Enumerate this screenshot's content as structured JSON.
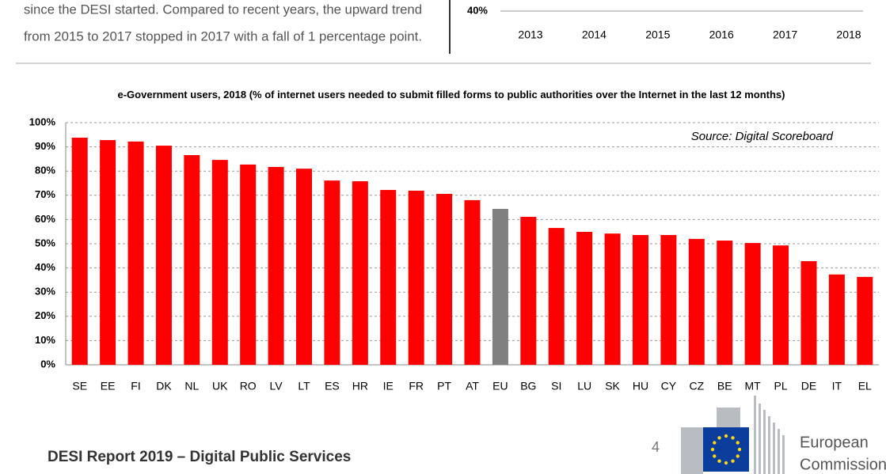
{
  "text": {
    "lines": [
      "since the DESI started. Compared to recent years, the upward trend",
      "from 2015 to 2017 stopped in 2017 with a fall of 1 percentage point."
    ]
  },
  "chart_data": [
    {
      "type": "line",
      "categories": [
        "2013",
        "2014",
        "2015",
        "2016",
        "2017",
        "2018"
      ],
      "yticks": [
        {
          "value": 40,
          "label": "40%"
        }
      ]
    },
    {
      "type": "bar",
      "title": "e-Government users, 2018 (% of internet users needed to submit filled forms to public authorities over the Internet in the last 12 months)",
      "annotation": "Source: Digital Scoreboard",
      "categories": [
        "SE",
        "EE",
        "FI",
        "DK",
        "NL",
        "UK",
        "RO",
        "LV",
        "LT",
        "ES",
        "HR",
        "IE",
        "FR",
        "PT",
        "AT",
        "EU",
        "BG",
        "SI",
        "LU",
        "SK",
        "HU",
        "CY",
        "CZ",
        "BE",
        "MT",
        "PL",
        "DE",
        "IT",
        "EL"
      ],
      "values": [
        93.8,
        92.8,
        92.2,
        90.5,
        86.6,
        84.6,
        82.7,
        81.7,
        81,
        76.1,
        75.8,
        72.2,
        71.9,
        70.6,
        68,
        64.4,
        61.1,
        56.5,
        54.9,
        54.2,
        53.6,
        53.6,
        52,
        51.3,
        50.3,
        49.3,
        42.8,
        37.3,
        36.3
      ],
      "colors": [
        "#ff0000",
        "#ff0000",
        "#ff0000",
        "#ff0000",
        "#ff0000",
        "#ff0000",
        "#ff0000",
        "#ff0000",
        "#ff0000",
        "#ff0000",
        "#ff0000",
        "#ff0000",
        "#ff0000",
        "#ff0000",
        "#ff0000",
        "#808080",
        "#ff0000",
        "#ff0000",
        "#ff0000",
        "#ff0000",
        "#ff0000",
        "#ff0000",
        "#ff0000",
        "#ff0000",
        "#ff0000",
        "#ff0000",
        "#ff0000",
        "#ff0000",
        "#ff0000"
      ],
      "ylim": [
        0,
        100
      ],
      "yticks": [
        {
          "value": 0,
          "label": "0%"
        },
        {
          "value": 10,
          "label": "10%"
        },
        {
          "value": 20,
          "label": "20%"
        },
        {
          "value": 30,
          "label": "30%"
        },
        {
          "value": 40,
          "label": "40%"
        },
        {
          "value": 50,
          "label": "50%"
        },
        {
          "value": 60,
          "label": "60%"
        },
        {
          "value": 70,
          "label": "70%"
        },
        {
          "value": 80,
          "label": "80%"
        },
        {
          "value": 90,
          "label": "90%"
        },
        {
          "value": 100,
          "label": "100%"
        }
      ],
      "grid": true
    }
  ],
  "footer": {
    "report": "DESI Report 2019 – Digital Public Services",
    "page": "4",
    "brand": [
      "European",
      "Commission"
    ]
  }
}
